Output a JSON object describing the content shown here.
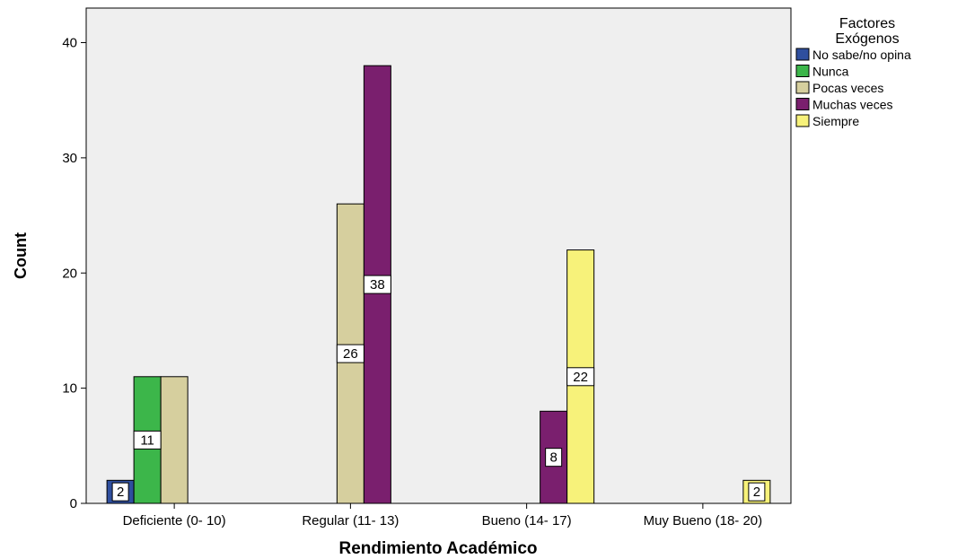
{
  "chart_data": {
    "type": "bar",
    "categories": [
      "Deficiente (0- 10)",
      "Regular (11- 13)",
      "Bueno (14- 17)",
      "Muy Bueno (18- 20)"
    ],
    "series": [
      {
        "name": "No sabe/no opina",
        "color": "#2f4f9e",
        "values": [
          2,
          0,
          0,
          0
        ]
      },
      {
        "name": "Nunca",
        "color": "#3cb64a",
        "values": [
          11,
          0,
          0,
          0
        ]
      },
      {
        "name": "Pocas veces",
        "color": "#d6cf9e",
        "values": [
          11,
          26,
          0,
          0
        ]
      },
      {
        "name": "Muchas veces",
        "color": "#7a1f6e",
        "values": [
          0,
          38,
          8,
          0
        ]
      },
      {
        "name": "Siempre",
        "color": "#f7f27a",
        "values": [
          0,
          0,
          22,
          2
        ]
      }
    ],
    "data_labels": [
      {
        "category": 0,
        "series": 0,
        "text": "2"
      },
      {
        "category": 0,
        "series": 1,
        "text": "11"
      },
      {
        "category": 1,
        "series": 2,
        "text": "26"
      },
      {
        "category": 1,
        "series": 3,
        "text": "38"
      },
      {
        "category": 2,
        "series": 3,
        "text": "8"
      },
      {
        "category": 2,
        "series": 4,
        "text": "22"
      },
      {
        "category": 3,
        "series": 4,
        "text": "2"
      }
    ],
    "title": "",
    "xlabel": "Rendimiento Académico",
    "ylabel": "Count",
    "ylim": [
      0,
      43
    ],
    "yticks": [
      0,
      10,
      20,
      30,
      40
    ],
    "legend": {
      "title_lines": [
        "Factores",
        "Exógenos"
      ],
      "placement": "right"
    },
    "plot_background": "#efefef",
    "grid": false
  }
}
